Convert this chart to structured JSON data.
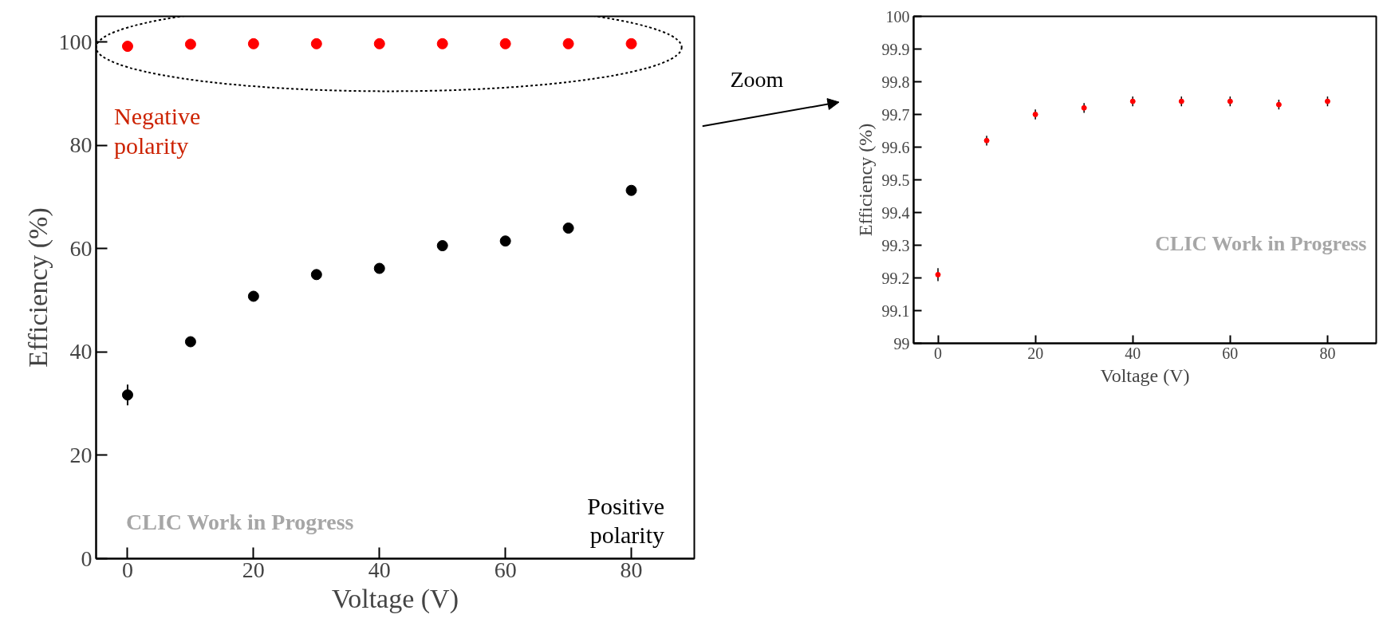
{
  "chart_data": [
    {
      "type": "scatter",
      "xlabel": "Voltage (V)",
      "ylabel": "Efficiency (%)",
      "x": [
        0,
        10,
        20,
        30,
        40,
        50,
        60,
        70,
        80
      ],
      "marker": "circle",
      "grid": false,
      "xlim": [
        -5,
        90
      ],
      "ylim": [
        0,
        105
      ],
      "xticks": [
        0,
        20,
        40,
        60,
        80
      ],
      "yticks": [
        0,
        20,
        40,
        60,
        80,
        100
      ],
      "series": [
        {
          "name": "Negative polarity",
          "color": "#ff0000",
          "values": [
            99.2,
            99.6,
            99.7,
            99.7,
            99.7,
            99.7,
            99.7,
            99.7,
            99.7
          ]
        },
        {
          "name": "Positive polarity",
          "color": "#000000",
          "values": [
            31.7,
            42.0,
            50.8,
            55.0,
            56.2,
            60.6,
            61.5,
            64.0,
            71.3
          ],
          "errors": [
            2,
            null,
            null,
            null,
            null,
            null,
            null,
            null,
            null
          ]
        }
      ],
      "annotations": [
        "CLIC Work in Progress",
        "Zoom"
      ]
    },
    {
      "type": "scatter",
      "xlabel": "Voltage (V)",
      "ylabel": "Efficiency (%)",
      "x": [
        0,
        10,
        20,
        30,
        40,
        50,
        60,
        70,
        80
      ],
      "marker": "circle",
      "grid": false,
      "xlim": [
        -5,
        90
      ],
      "ylim": [
        99,
        100
      ],
      "xticks": [
        0,
        20,
        40,
        60,
        80
      ],
      "yticks": [
        99,
        99.1,
        99.2,
        99.3,
        99.4,
        99.5,
        99.6,
        99.7,
        99.8,
        99.9,
        100
      ],
      "series": [
        {
          "color": "#ff0000",
          "values": [
            99.21,
            99.62,
            99.7,
            99.72,
            99.74,
            99.74,
            99.74,
            99.73,
            99.74
          ],
          "errors": [
            0.02,
            0.015,
            0.015,
            0.015,
            0.015,
            0.015,
            0.015,
            0.015,
            0.015
          ]
        }
      ],
      "annotations": [
        "CLIC Work in Progress"
      ]
    }
  ]
}
